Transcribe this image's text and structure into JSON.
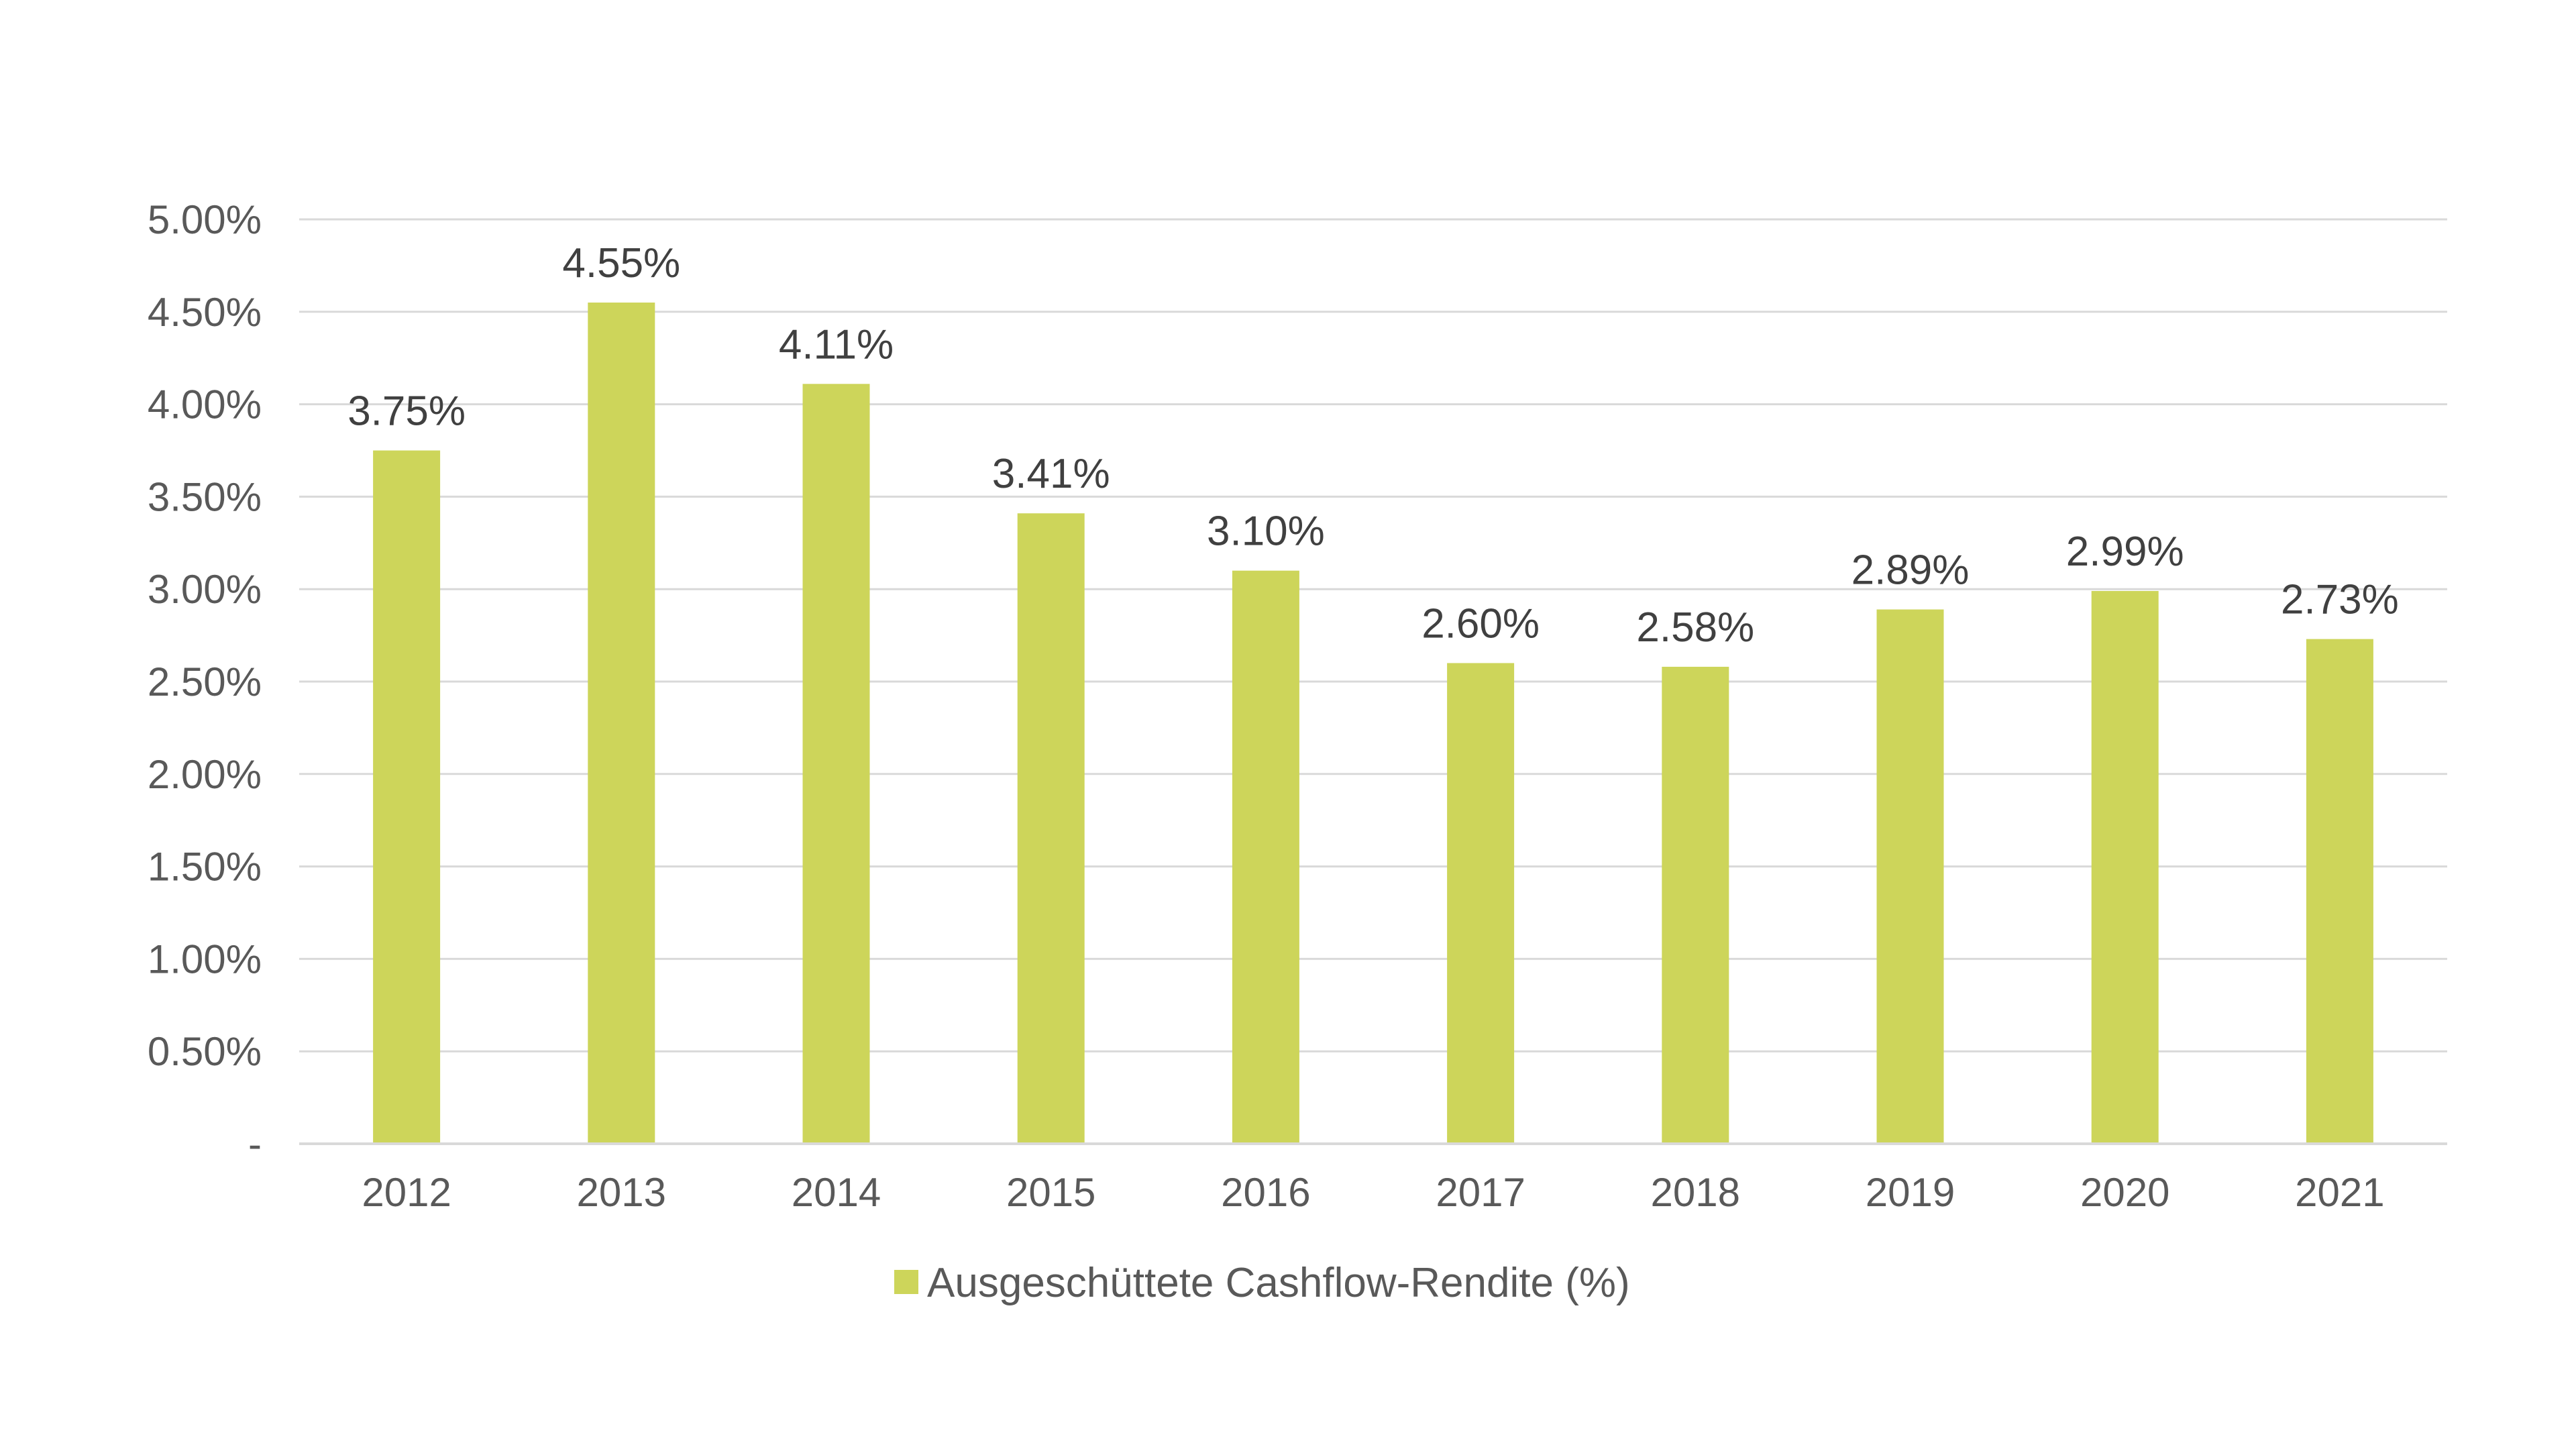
{
  "chart_data": {
    "type": "bar",
    "categories": [
      "2012",
      "2013",
      "2014",
      "2015",
      "2016",
      "2017",
      "2018",
      "2019",
      "2020",
      "2021"
    ],
    "series": [
      {
        "name": "Ausgeschüttete Cashflow-Rendite (%)",
        "values": [
          3.75,
          4.55,
          4.11,
          3.41,
          3.1,
          2.6,
          2.58,
          2.89,
          2.99,
          2.73
        ],
        "labels": [
          "3.75%",
          "4.55%",
          "4.11%",
          "3.41%",
          "3.10%",
          "2.60%",
          "2.58%",
          "2.89%",
          "2.99%",
          "2.73%"
        ],
        "color": "#cdd55a"
      }
    ],
    "ylim": [
      0,
      5
    ],
    "yticks": [
      0,
      0.5,
      1,
      1.5,
      2,
      2.5,
      3,
      3.5,
      4,
      4.5,
      5
    ],
    "ytick_labels": [
      "-",
      "0.50%",
      "1.00%",
      "1.50%",
      "2.00%",
      "2.50%",
      "3.00%",
      "3.50%",
      "4.00%",
      "4.50%",
      "5.00%"
    ],
    "grid": true,
    "legend_position": "bottom-center",
    "gridline_color": "#d9d9d9",
    "axis_line_color": "#d9d9d9"
  }
}
